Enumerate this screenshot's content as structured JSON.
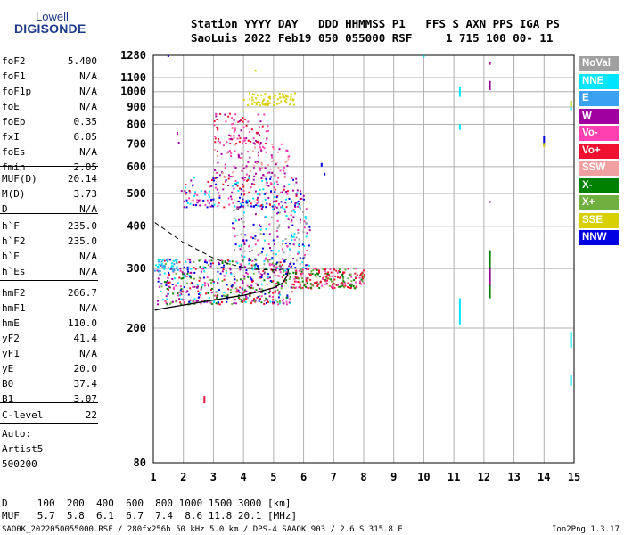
{
  "logo": {
    "top": "Lowell",
    "main": "DIGISONDE"
  },
  "header": {
    "line1": "Station YYYY DAY   DDD HHMMSS P1   FFS S AXN PPS IGA PS",
    "line2": "SaoLuis 2022 Feb19 050 055000 RSF     1 715 100 00- 11"
  },
  "params_a": [
    {
      "name": "foF2",
      "value": "5.400"
    },
    {
      "name": "foF1",
      "value": "N/A"
    },
    {
      "name": "foF1p",
      "value": "N/A"
    },
    {
      "name": "foE",
      "value": "N/A"
    },
    {
      "name": "foEp",
      "value": "0.35"
    },
    {
      "name": "fxI",
      "value": "6.05"
    },
    {
      "name": "foEs",
      "value": "N/A"
    },
    {
      "name": "fmin",
      "value": "2.05"
    }
  ],
  "params_b": [
    {
      "name": "MUF(D)",
      "value": "20.14"
    },
    {
      "name": "M(D)",
      "value": "3.73"
    },
    {
      "name": "D",
      "value": "N/A"
    }
  ],
  "params_c": [
    {
      "name": "h`F",
      "value": "235.0"
    },
    {
      "name": "h`F2",
      "value": "235.0"
    },
    {
      "name": "h`E",
      "value": "N/A"
    },
    {
      "name": "h`Es",
      "value": "N/A"
    }
  ],
  "params_d": [
    {
      "name": "hmF2",
      "value": "266.7"
    },
    {
      "name": "hmF1",
      "value": "N/A"
    },
    {
      "name": "hmE",
      "value": "110.0"
    },
    {
      "name": "yF2",
      "value": "41.4"
    },
    {
      "name": "yF1",
      "value": "N/A"
    },
    {
      "name": "yE",
      "value": "20.0"
    },
    {
      "name": "B0",
      "value": "37.4"
    },
    {
      "name": "B1",
      "value": "3.07"
    }
  ],
  "params_e": [
    {
      "name": "C-level",
      "value": "22"
    }
  ],
  "notes": [
    "Auto:",
    "Artist5",
    "500200"
  ],
  "legend": [
    {
      "label": "NoVal",
      "color": "#a0a0a0"
    },
    {
      "label": "NNE",
      "color": "#00e5ff"
    },
    {
      "label": "E",
      "color": "#3aa0f0"
    },
    {
      "label": "W",
      "color": "#a000a0"
    },
    {
      "label": "Vo-",
      "color": "#ff40b0"
    },
    {
      "label": "Vo+",
      "color": "#f01030"
    },
    {
      "label": "SSW",
      "color": "#f0a0a0"
    },
    {
      "label": "X-",
      "color": "#008000"
    },
    {
      "label": "X+",
      "color": "#70b040"
    },
    {
      "label": "SSE",
      "color": "#d8d000"
    },
    {
      "label": "NNW",
      "color": "#0000e0"
    }
  ],
  "footer": {
    "line1": "D     100  200  400  600  800 1000 1500 3000 [km]",
    "line2": "MUF   5.7  5.8  6.1  6.7  7.4  8.6 11.8 20.1 [MHz]",
    "line3": "SAO0K_2022050055000.RSF / 280fx256h 50 kHz 5.0 km / DPS-4 SAAOK 903 / 2.6 S 315.8 E",
    "version": "Ion2Png 1.3.17"
  },
  "chart_data": {
    "type": "scatter",
    "xlim": [
      1,
      15
    ],
    "ylim": [
      80,
      1280
    ],
    "x_ticks": [
      1,
      2,
      3,
      4,
      5,
      6,
      7,
      8,
      9,
      10,
      11,
      12,
      13,
      14,
      15
    ],
    "y_ticks": [
      80,
      200,
      300,
      400,
      500,
      600,
      700,
      800,
      900,
      1000,
      1100,
      1280
    ],
    "y_scale": "log",
    "grid": true,
    "profile_curve": [
      [
        1.05,
        226
      ],
      [
        1.5,
        230
      ],
      [
        2.0,
        234
      ],
      [
        2.5,
        238
      ],
      [
        3.0,
        242
      ],
      [
        3.5,
        246
      ],
      [
        4.0,
        250
      ],
      [
        4.5,
        256
      ],
      [
        5.0,
        263
      ],
      [
        5.3,
        272
      ],
      [
        5.45,
        285
      ],
      [
        5.5,
        298
      ]
    ],
    "dashed_curve": [
      [
        1.05,
        410
      ],
      [
        1.5,
        385
      ],
      [
        2.0,
        358
      ],
      [
        2.5,
        340
      ],
      [
        3.0,
        322
      ],
      [
        3.5,
        310
      ],
      [
        4.0,
        302
      ],
      [
        4.5,
        298
      ],
      [
        5.0,
        297
      ],
      [
        5.4,
        299
      ]
    ],
    "clusters": [
      {
        "x0": 1.1,
        "x1": 5.6,
        "y0": 235,
        "y1": 320,
        "n": 520,
        "colors": [
          "#f01030",
          "#ff40b0",
          "#a000a0",
          "#0000e0",
          "#00e5ff",
          "#008000",
          "#70b040"
        ]
      },
      {
        "x0": 5.6,
        "x1": 8.0,
        "y0": 262,
        "y1": 300,
        "n": 220,
        "colors": [
          "#f01030",
          "#ff40b0",
          "#008000",
          "#70b040",
          "#f01030"
        ]
      },
      {
        "x0": 3.6,
        "x1": 6.2,
        "y0": 300,
        "y1": 470,
        "n": 220,
        "colors": [
          "#ff40b0",
          "#a000a0",
          "#0000e0",
          "#00e5ff",
          "#a0a0a0"
        ]
      },
      {
        "x0": 1.9,
        "x1": 6.0,
        "y0": 455,
        "y1": 560,
        "n": 230,
        "colors": [
          "#a000a0",
          "#f01030",
          "#ff40b0",
          "#0000e0",
          "#00e5ff"
        ]
      },
      {
        "x0": 3.0,
        "x1": 5.5,
        "y0": 560,
        "y1": 700,
        "n": 110,
        "colors": [
          "#ff40b0",
          "#a000a0",
          "#f0a0a0"
        ]
      },
      {
        "x0": 3.0,
        "x1": 4.8,
        "y0": 700,
        "y1": 860,
        "n": 90,
        "colors": [
          "#a000a0",
          "#ff40b0",
          "#f01030"
        ]
      },
      {
        "x0": 3.9,
        "x1": 5.7,
        "y0": 910,
        "y1": 990,
        "n": 70,
        "colors": [
          "#d8d000"
        ]
      },
      {
        "x0": 1.0,
        "x1": 1.8,
        "y0": 290,
        "y1": 320,
        "n": 40,
        "colors": [
          "#00e5ff",
          "#3aa0f0"
        ]
      }
    ],
    "vertical_bars": [
      {
        "x": 11.2,
        "y0": 205,
        "y1": 245,
        "color": "#00e5ff"
      },
      {
        "x": 11.2,
        "y0": 965,
        "y1": 1030,
        "color": "#00e5ff"
      },
      {
        "x": 11.2,
        "y0": 770,
        "y1": 800,
        "color": "#00e5ff"
      },
      {
        "x": 12.2,
        "y0": 245,
        "y1": 340,
        "color": "#008000"
      },
      {
        "x": 12.2,
        "y0": 268,
        "y1": 300,
        "color": "#a000a0"
      },
      {
        "x": 12.2,
        "y0": 1010,
        "y1": 1075,
        "color": "#a000a0"
      },
      {
        "x": 12.2,
        "y0": 1200,
        "y1": 1225,
        "color": "#a000a0"
      },
      {
        "x": 12.2,
        "y0": 470,
        "y1": 475,
        "color": "#a000a0"
      },
      {
        "x": 14.0,
        "y0": 690,
        "y1": 740,
        "color": "#0000e0"
      },
      {
        "x": 14.0,
        "y0": 685,
        "y1": 705,
        "color": "#d8d000"
      },
      {
        "x": 14.9,
        "y0": 880,
        "y1": 940,
        "color": "#00e5ff"
      },
      {
        "x": 14.9,
        "y0": 175,
        "y1": 195,
        "color": "#00e5ff"
      },
      {
        "x": 14.9,
        "y0": 135,
        "y1": 145,
        "color": "#00e5ff"
      },
      {
        "x": 14.9,
        "y0": 900,
        "y1": 940,
        "color": "#d8d000"
      },
      {
        "x": 1.8,
        "y0": 745,
        "y1": 760,
        "color": "#a000a0"
      },
      {
        "x": 1.85,
        "y0": 700,
        "y1": 710,
        "color": "#a000a0"
      },
      {
        "x": 4.4,
        "y0": 1145,
        "y1": 1160,
        "color": "#d8d000"
      },
      {
        "x": 10.0,
        "y0": 1270,
        "y1": 1278,
        "color": "#00e5ff"
      },
      {
        "x": 1.5,
        "y0": 1276,
        "y1": 1280,
        "color": "#0000e0"
      },
      {
        "x": 2.7,
        "y0": 120,
        "y1": 126,
        "color": "#f01030"
      },
      {
        "x": 6.6,
        "y0": 600,
        "y1": 615,
        "color": "#0000e0"
      },
      {
        "x": 6.7,
        "y0": 565,
        "y1": 575,
        "color": "#0000e0"
      }
    ]
  }
}
